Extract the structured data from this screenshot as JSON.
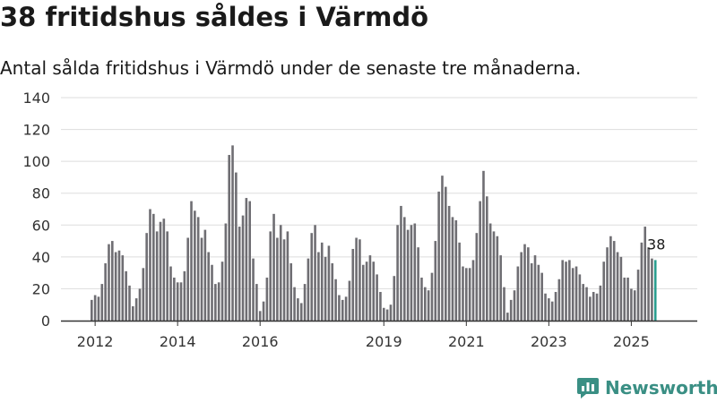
{
  "title": "38 fritidshus såldes i Värmdö",
  "subtitle": "Antal sålda fritidshus i Värmdö under de senaste tre månaderna.",
  "brand": {
    "name": "Newsworthy",
    "icon": "bar-chart-logo-icon",
    "color": "#3a8f84"
  },
  "colors": {
    "bar": "#6f6e73",
    "highlight": "#2a9d8f",
    "grid": "#dddddd",
    "axis": "#333333"
  },
  "chart_data": {
    "type": "bar",
    "title": "38 fritidshus såldes i Värmdö",
    "xlabel": "",
    "ylabel": "",
    "ylim": [
      0,
      140
    ],
    "yticks": [
      0,
      20,
      40,
      60,
      80,
      100,
      120,
      140
    ],
    "grid": true,
    "legend": "none",
    "start": "2011-12",
    "period": "monthly rolling 3-month total",
    "xticks": [
      "2012",
      "2014",
      "2016",
      "2019",
      "2021",
      "2023",
      "2025"
    ],
    "last_value_label": "38",
    "values": [
      13,
      16,
      15,
      23,
      36,
      48,
      50,
      43,
      44,
      41,
      31,
      22,
      9,
      14,
      20,
      33,
      55,
      70,
      67,
      56,
      62,
      64,
      56,
      34,
      27,
      24,
      24,
      31,
      52,
      75,
      69,
      65,
      52,
      57,
      43,
      35,
      23,
      24,
      37,
      61,
      104,
      110,
      93,
      59,
      66,
      77,
      75,
      39,
      23,
      6,
      12,
      27,
      56,
      67,
      52,
      60,
      51,
      56,
      36,
      21,
      14,
      11,
      23,
      39,
      55,
      60,
      43,
      49,
      40,
      47,
      36,
      26,
      16,
      13,
      15,
      25,
      45,
      52,
      51,
      35,
      37,
      41,
      37,
      29,
      18,
      8,
      7,
      10,
      28,
      60,
      72,
      65,
      57,
      60,
      61,
      46,
      27,
      21,
      19,
      30,
      50,
      81,
      91,
      84,
      72,
      65,
      63,
      49,
      34,
      33,
      33,
      38,
      55,
      75,
      94,
      78,
      61,
      56,
      53,
      41,
      21,
      5,
      13,
      19,
      34,
      43,
      48,
      46,
      36,
      41,
      35,
      30,
      17,
      14,
      12,
      18,
      26,
      38,
      37,
      38,
      33,
      34,
      29,
      23,
      21,
      15,
      18,
      17,
      22,
      37,
      46,
      53,
      50,
      43,
      40,
      27,
      27,
      20,
      19,
      32,
      49,
      59,
      46,
      39,
      38
    ]
  }
}
